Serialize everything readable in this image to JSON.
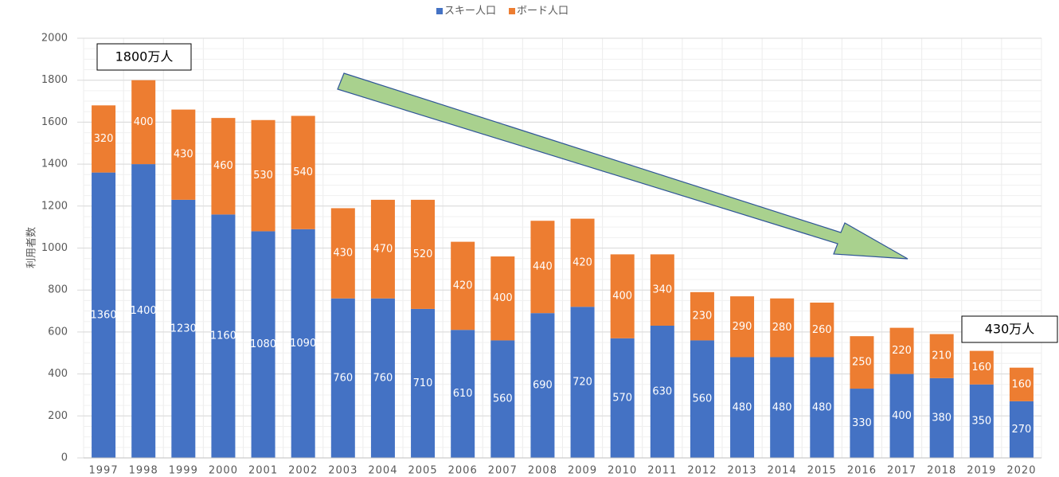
{
  "chart_data": {
    "type": "stacked_bar",
    "categories": [
      "1997",
      "1998",
      "1999",
      "2000",
      "2001",
      "2002",
      "2003",
      "2004",
      "2005",
      "2006",
      "2007",
      "2008",
      "2009",
      "2010",
      "2011",
      "2012",
      "2013",
      "2014",
      "2015",
      "2016",
      "2017",
      "2018",
      "2019",
      "2020"
    ],
    "series": [
      {
        "name": "スキー人口",
        "color": "#4472c4",
        "values": [
          1360,
          1400,
          1230,
          1160,
          1080,
          1090,
          760,
          760,
          710,
          610,
          560,
          690,
          720,
          570,
          630,
          560,
          480,
          480,
          480,
          330,
          400,
          380,
          350,
          270
        ]
      },
      {
        "name": "ボード人口",
        "color": "#ed7d31",
        "values": [
          320,
          400,
          430,
          460,
          530,
          540,
          430,
          470,
          520,
          420,
          400,
          440,
          420,
          400,
          340,
          230,
          290,
          280,
          260,
          250,
          220,
          210,
          160,
          160
        ]
      }
    ],
    "ylabel": "利用者数",
    "ylim": [
      0,
      2000
    ],
    "yticks": [
      0,
      200,
      400,
      600,
      800,
      1000,
      1200,
      1400,
      1600,
      1800,
      2000
    ],
    "grid": true,
    "legend": "top",
    "annotations": [
      "1800万人",
      "430万人"
    ]
  }
}
